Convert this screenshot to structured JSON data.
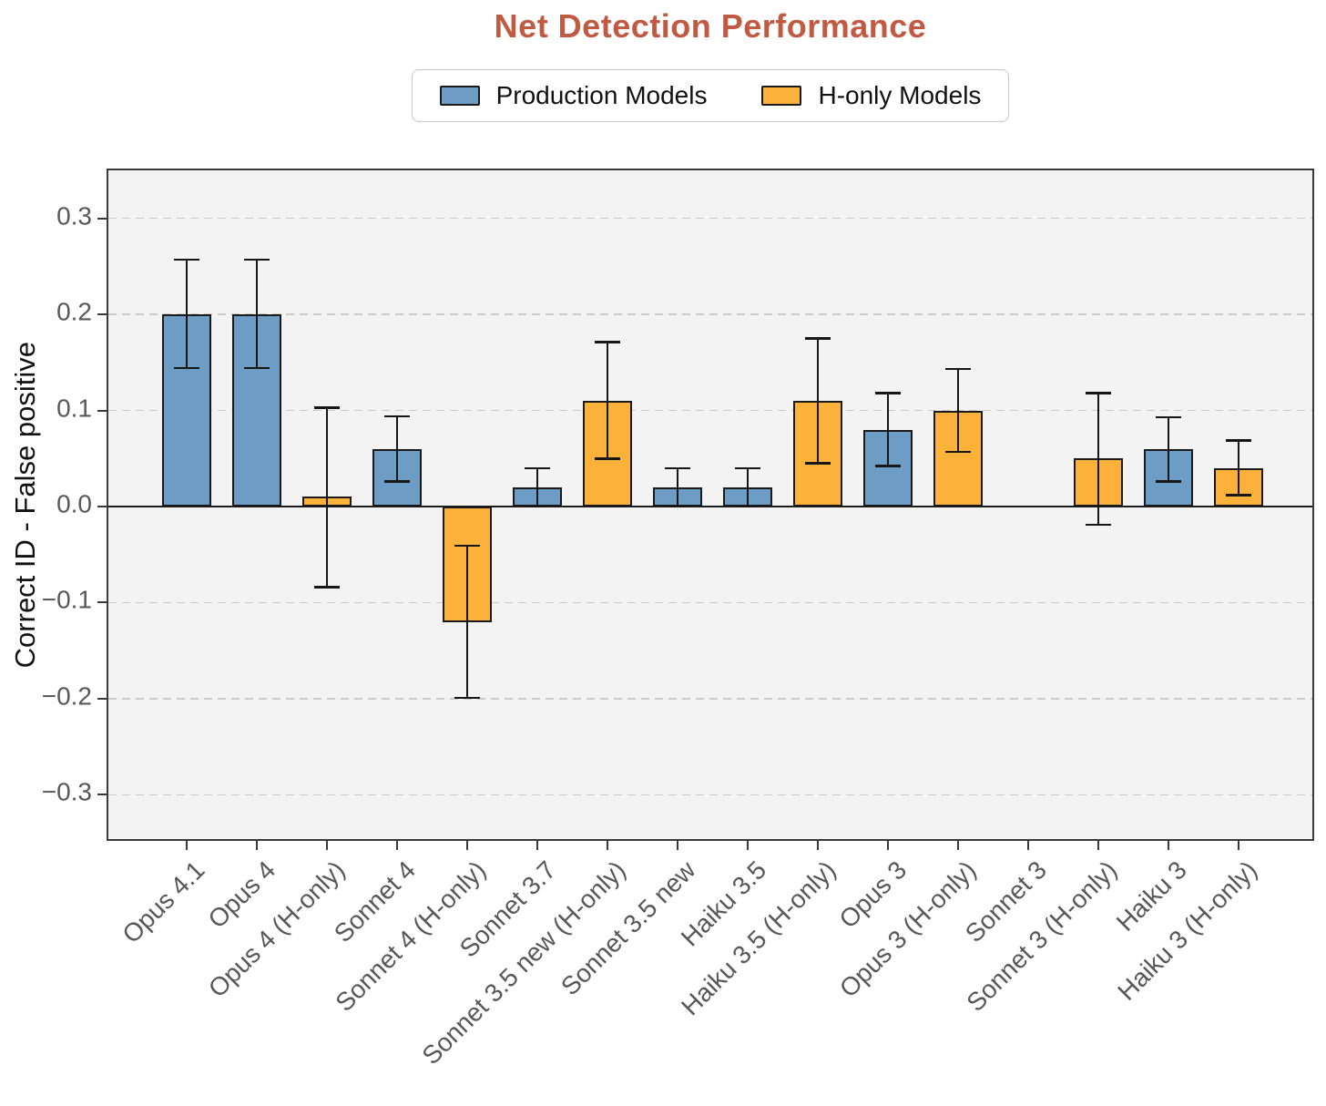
{
  "title": "Net Detection Performance",
  "title_color": "#c05a42",
  "legend": [
    {
      "label": "Production Models",
      "color": "#6d9cc4",
      "series": "production"
    },
    {
      "label": "H-only Models",
      "color": "#fbb13a",
      "series": "h_only"
    }
  ],
  "chart_data": {
    "type": "bar",
    "title": "Net Detection Performance",
    "xlabel": "",
    "ylabel": "Correct ID - False positive",
    "ylim": [
      -0.35,
      0.35
    ],
    "yticks": [
      0.3,
      0.2,
      0.1,
      0.0,
      -0.1,
      -0.2,
      -0.3
    ],
    "grid": "horizontal dashed gridlines at every 0.1 except solid black line at 0",
    "legend_position": "top center, outside axes",
    "series_colors": {
      "production": "#6d9cc4",
      "h_only": "#fbb13a"
    },
    "categories": [
      "Opus 4.1",
      "Opus 4",
      "Opus 4 (H-only)",
      "Sonnet 4",
      "Sonnet 4 (H-only)",
      "Sonnet 3.7",
      "Sonnet 3.5 new (H-only)",
      "Sonnet 3.5 new",
      "Haiku 3.5",
      "Haiku 3.5 (H-only)",
      "Opus 3",
      "Opus 3 (H-only)",
      "Sonnet 3",
      "Sonnet 3 (H-only)",
      "Haiku 3",
      "Haiku 3 (H-only)"
    ],
    "bars": [
      {
        "label": "Opus 4.1",
        "series": "production",
        "value": 0.2,
        "ci_low": 0.144,
        "ci_high": 0.257
      },
      {
        "label": "Opus 4",
        "series": "production",
        "value": 0.2,
        "ci_low": 0.144,
        "ci_high": 0.257
      },
      {
        "label": "Opus 4 (H-only)",
        "series": "h_only",
        "value": 0.01,
        "ci_low": -0.084,
        "ci_high": 0.103
      },
      {
        "label": "Sonnet 4",
        "series": "production",
        "value": 0.06,
        "ci_low": 0.026,
        "ci_high": 0.094
      },
      {
        "label": "Sonnet 4 (H-only)",
        "series": "h_only",
        "value": -0.12,
        "ci_low": -0.199,
        "ci_high": -0.041
      },
      {
        "label": "Sonnet 3.7",
        "series": "production",
        "value": 0.02,
        "ci_low": 0.0,
        "ci_high": 0.04
      },
      {
        "label": "Sonnet 3.5 new (H-only)",
        "series": "h_only",
        "value": 0.11,
        "ci_low": 0.05,
        "ci_high": 0.171
      },
      {
        "label": "Sonnet 3.5 new",
        "series": "production",
        "value": 0.02,
        "ci_low": 0.0,
        "ci_high": 0.04
      },
      {
        "label": "Haiku 3.5",
        "series": "production",
        "value": 0.02,
        "ci_low": 0.0,
        "ci_high": 0.04
      },
      {
        "label": "Haiku 3.5 (H-only)",
        "series": "h_only",
        "value": 0.11,
        "ci_low": 0.045,
        "ci_high": 0.175
      },
      {
        "label": "Opus 3",
        "series": "production",
        "value": 0.08,
        "ci_low": 0.042,
        "ci_high": 0.118
      },
      {
        "label": "Opus 3 (H-only)",
        "series": "h_only",
        "value": 0.1,
        "ci_low": 0.057,
        "ci_high": 0.143
      },
      {
        "label": "Sonnet 3",
        "series": "production",
        "value": 0.0,
        "ci_low": null,
        "ci_high": null
      },
      {
        "label": "Sonnet 3 (H-only)",
        "series": "h_only",
        "value": 0.05,
        "ci_low": -0.019,
        "ci_high": 0.118
      },
      {
        "label": "Haiku 3",
        "series": "production",
        "value": 0.06,
        "ci_low": 0.026,
        "ci_high": 0.093
      },
      {
        "label": "Haiku 3 (H-only)",
        "series": "h_only",
        "value": 0.04,
        "ci_low": 0.012,
        "ci_high": 0.069
      }
    ]
  }
}
